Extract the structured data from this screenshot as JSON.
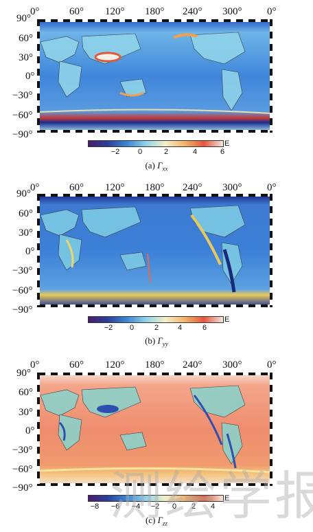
{
  "lon_ticks": [
    "0°",
    "60°",
    "120°",
    "180°",
    "240°",
    "300°",
    "0°"
  ],
  "lat_ticks": [
    "90°",
    "60°",
    "30°",
    "0°",
    "−30°",
    "−60°",
    "−90°"
  ],
  "unit": "E",
  "panels": [
    {
      "caption_prefix": "(a)",
      "caption_symbol": "Γ",
      "caption_sub": "xx",
      "colorbar_ticks": [
        "−2",
        "0",
        "2",
        "4",
        "6"
      ],
      "colors": {
        "ocean": "#3f7fd6",
        "land": "#7cc7e0",
        "hot": "#f2a14a",
        "cold": "#1b3a9a"
      }
    },
    {
      "caption_prefix": "(b)",
      "caption_symbol": "Γ",
      "caption_sub": "yy",
      "colorbar_ticks": [
        "−2",
        "0",
        "2",
        "4",
        "6"
      ],
      "colors": {
        "ocean": "#3a7ad2",
        "land": "#6fbfe0",
        "hot": "#e9c95a",
        "cold": "#1a3390"
      }
    },
    {
      "caption_prefix": "(c)",
      "caption_symbol": "Γ",
      "caption_sub": "zz",
      "colorbar_ticks": [
        "−8",
        "−6",
        "−4",
        "−2",
        "0",
        "2",
        "4"
      ],
      "colors": {
        "ocean": "#f08a6a",
        "land": "#8fd0c8",
        "hot": "#f7b9a1",
        "cold": "#2c4fb0"
      }
    }
  ],
  "watermark": "测绘学报"
}
